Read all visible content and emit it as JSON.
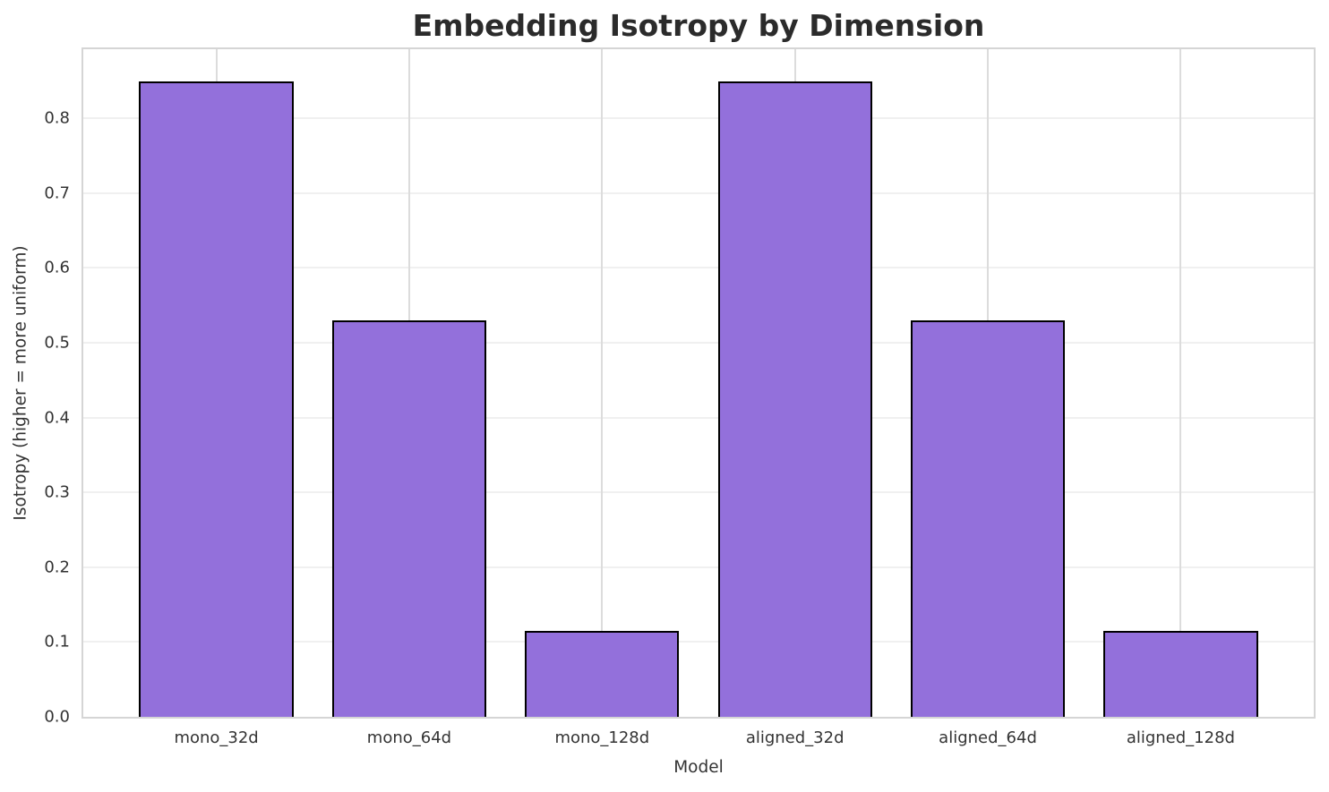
{
  "chart_data": {
    "type": "bar",
    "title": "Embedding Isotropy by Dimension",
    "xlabel": "Model",
    "ylabel": "Isotropy (higher = more uniform)",
    "categories": [
      "mono_32d",
      "mono_64d",
      "mono_128d",
      "aligned_32d",
      "aligned_64d",
      "aligned_128d"
    ],
    "values": [
      0.85,
      0.53,
      0.115,
      0.85,
      0.53,
      0.115
    ],
    "ylim": [
      0,
      0.8925
    ],
    "yticks": [
      0.0,
      0.1,
      0.2,
      0.3,
      0.4,
      0.5,
      0.6,
      0.7,
      0.8
    ],
    "grid": true,
    "legend": false,
    "bar_color": "#9370db",
    "bar_edge_color": "#000000",
    "background_color": "#ffffff"
  }
}
